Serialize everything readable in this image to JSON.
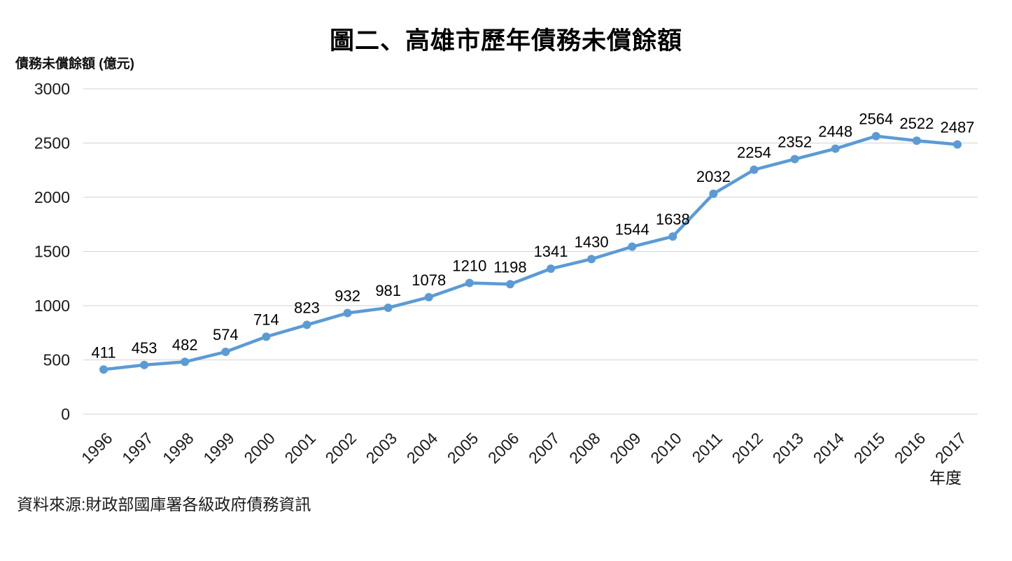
{
  "title": "圖二、高雄市歷年債務未償餘額",
  "y_axis_title": "債務未償餘額 (億元)",
  "x_axis_title": "年度",
  "source": "資料來源:財政部國庫署各級政府債務資訊",
  "colors": {
    "line": "#5B9BD5",
    "marker": "#5B9BD5",
    "grid": "#D9D9D9",
    "text": "#1a1a1a",
    "data_label": "#000000"
  },
  "chart_data": {
    "type": "line",
    "title": "圖二、高雄市歷年債務未償餘額",
    "xlabel": "年度",
    "ylabel": "債務未償餘額 (億元)",
    "categories": [
      "1996",
      "1997",
      "1998",
      "1999",
      "2000",
      "2001",
      "2002",
      "2003",
      "2004",
      "2005",
      "2006",
      "2007",
      "2008",
      "2009",
      "2010",
      "2011",
      "2012",
      "2013",
      "2014",
      "2015",
      "2016",
      "2017"
    ],
    "values": [
      411,
      453,
      482,
      574,
      714,
      823,
      932,
      981,
      1078,
      1210,
      1198,
      1341,
      1430,
      1544,
      1638,
      2032,
      2254,
      2352,
      2448,
      2564,
      2522,
      2487
    ],
    "ylim": [
      0,
      3000
    ],
    "yticks": [
      0,
      500,
      1000,
      1500,
      2000,
      2500,
      3000
    ],
    "grid": true,
    "legend": false,
    "marker": "circle",
    "data_labels": true,
    "x_label_rotation": -45
  }
}
